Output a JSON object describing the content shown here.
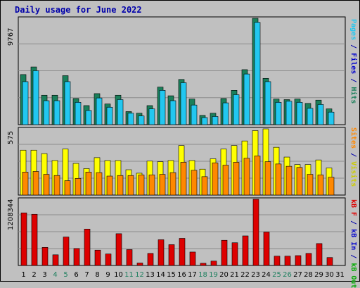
{
  "title": "Daily usage for June 2022",
  "colors": {
    "hits": "#1a7f5a",
    "files": "#22c7f0",
    "pages": "#22c7f0",
    "visits": "#ffff00",
    "sites": "#ff8800",
    "kbin": "#dd0000",
    "kbout": "#dd0000",
    "weekend": "#208060",
    "weekday": "#000080"
  },
  "right_labels": {
    "top": [
      {
        "text": "Pages",
        "color": "#22c7f0"
      },
      {
        "text": " / ",
        "color": "#0000aa"
      },
      {
        "text": "Files",
        "color": "#0000cc"
      },
      {
        "text": " / ",
        "color": "#0000aa"
      },
      {
        "text": "Hits",
        "color": "#1a7f5a"
      }
    ],
    "mid": [
      {
        "text": "Sites",
        "color": "#ff8800"
      },
      {
        "text": " / ",
        "color": "#0000aa"
      },
      {
        "text": "Visits",
        "color": "#cccc00"
      }
    ],
    "bot": [
      {
        "text": "kB F",
        "color": "#dd0000"
      },
      {
        "text": " / ",
        "color": "#0000aa"
      },
      {
        "text": "kB In",
        "color": "#0000cc"
      },
      {
        "text": " / ",
        "color": "#0000aa"
      },
      {
        "text": "kB Out",
        "color": "#00aa00"
      }
    ]
  },
  "chart_data": [
    {
      "type": "bar",
      "name": "hits-files-pages",
      "ymax_label": "9767",
      "ylim": [
        0,
        9767
      ],
      "categories": [
        "1",
        "2",
        "3",
        "4",
        "5",
        "6",
        "7",
        "8",
        "9",
        "10",
        "11",
        "12",
        "13",
        "14",
        "15",
        "16",
        "17",
        "18",
        "19",
        "20",
        "21",
        "22",
        "23",
        "24",
        "25",
        "26",
        "27",
        "28",
        "29",
        "30",
        "31"
      ],
      "weekend_days": [
        "4",
        "5",
        "11",
        "12",
        "18",
        "19",
        "25",
        "26"
      ],
      "series": [
        {
          "name": "Hits",
          "values": [
            4600,
            5300,
            2700,
            2700,
            4500,
            2400,
            1750,
            2850,
            1900,
            2700,
            1200,
            1050,
            1750,
            3450,
            2650,
            4150,
            2350,
            850,
            1050,
            2400,
            3150,
            5050,
            9767,
            4250,
            2350,
            2300,
            2350,
            1950,
            2250,
            1450,
            0
          ]
        },
        {
          "name": "Files",
          "values": [
            3950,
            4950,
            2200,
            2200,
            3950,
            2050,
            1300,
            2450,
            1600,
            2300,
            1050,
            800,
            1450,
            3150,
            2200,
            3850,
            1800,
            650,
            750,
            2000,
            2750,
            4650,
            9400,
            3950,
            2050,
            2150,
            2050,
            1500,
            1850,
            1150,
            0
          ]
        }
      ]
    },
    {
      "type": "bar",
      "name": "visits-sites",
      "ymax_label": "575",
      "ylim": [
        0,
        575
      ],
      "categories": [
        "1",
        "2",
        "3",
        "4",
        "5",
        "6",
        "7",
        "8",
        "9",
        "10",
        "11",
        "12",
        "13",
        "14",
        "15",
        "16",
        "17",
        "18",
        "19",
        "20",
        "21",
        "22",
        "23",
        "24",
        "25",
        "26",
        "27",
        "28",
        "29",
        "30",
        "31"
      ],
      "series": [
        {
          "name": "Visits",
          "values": [
            390,
            390,
            360,
            300,
            400,
            275,
            230,
            325,
            300,
            300,
            220,
            190,
            295,
            290,
            300,
            430,
            300,
            225,
            315,
            400,
            430,
            470,
            560,
            575,
            415,
            330,
            265,
            265,
            305,
            235,
            0
          ]
        },
        {
          "name": "Sites",
          "values": [
            200,
            205,
            180,
            170,
            125,
            145,
            200,
            195,
            165,
            170,
            170,
            175,
            175,
            180,
            195,
            285,
            215,
            160,
            280,
            260,
            285,
            320,
            340,
            290,
            270,
            250,
            240,
            180,
            175,
            155,
            0
          ]
        }
      ]
    },
    {
      "type": "bar",
      "name": "kbytes",
      "ymax_label": "1208344",
      "ylim": [
        0,
        1208344
      ],
      "categories": [
        "1",
        "2",
        "3",
        "4",
        "5",
        "6",
        "7",
        "8",
        "9",
        "10",
        "11",
        "12",
        "13",
        "14",
        "15",
        "16",
        "17",
        "18",
        "19",
        "20",
        "21",
        "22",
        "23",
        "24",
        "25",
        "26",
        "27",
        "28",
        "29",
        "30",
        "31"
      ],
      "series": [
        {
          "name": "KBytes",
          "values": [
            960000,
            935000,
            330000,
            195000,
            520000,
            310000,
            665000,
            280000,
            210000,
            580000,
            290000,
            45000,
            220000,
            470000,
            380000,
            495000,
            245000,
            40000,
            80000,
            460000,
            415000,
            540000,
            1208344,
            610000,
            170000,
            170000,
            180000,
            220000,
            400000,
            145000,
            0
          ]
        }
      ]
    }
  ]
}
